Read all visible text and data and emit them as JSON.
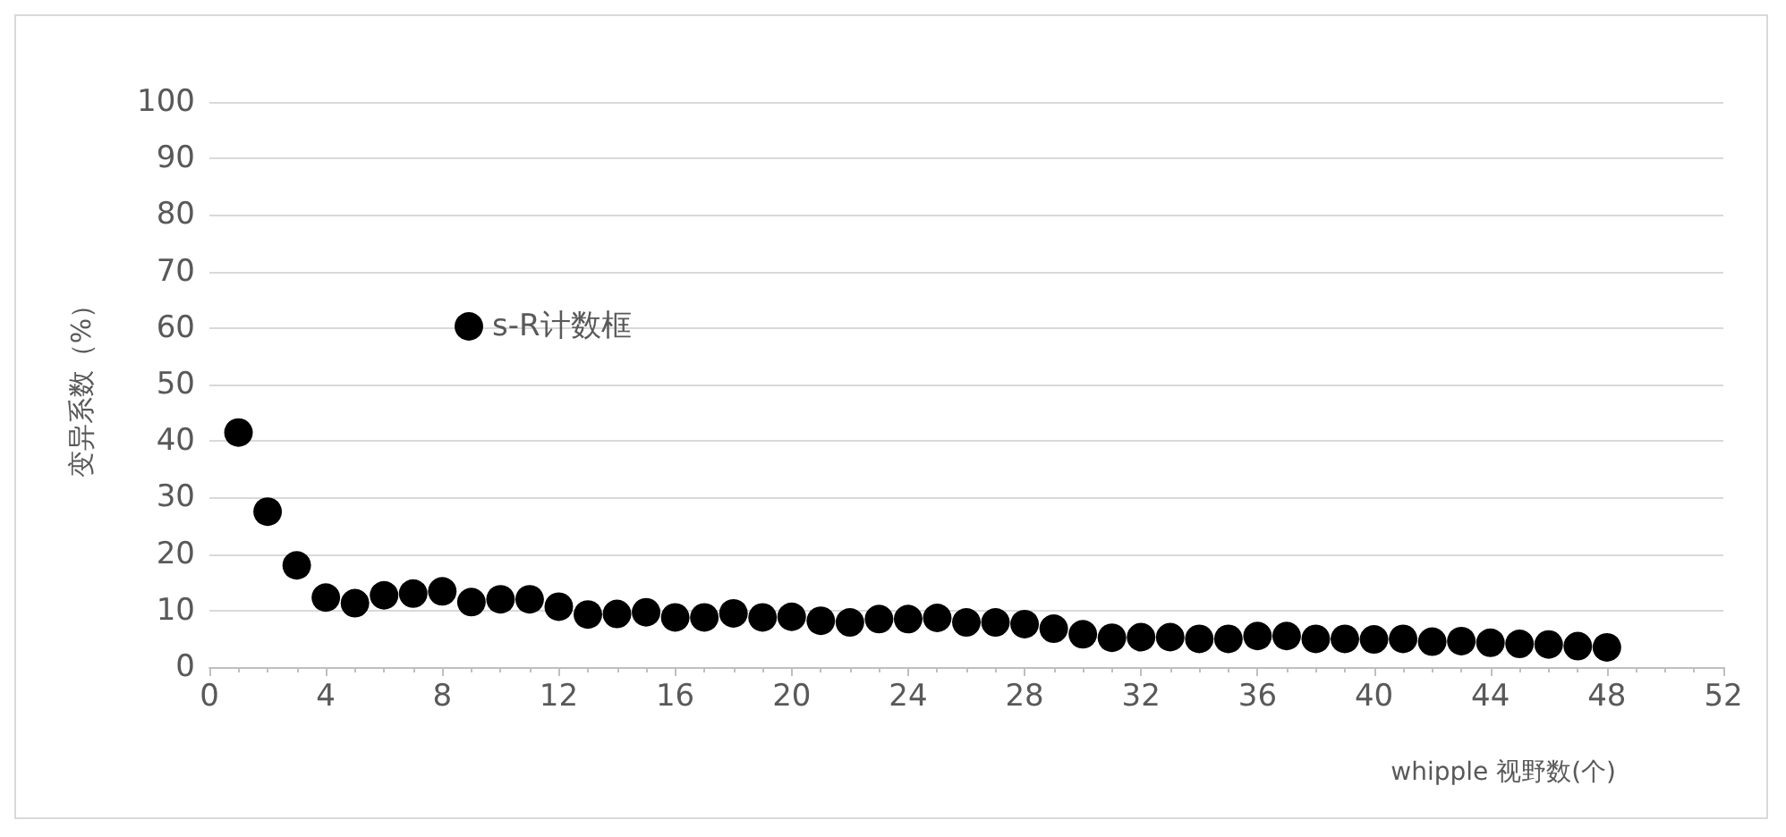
{
  "chart_data": {
    "type": "scatter",
    "xlabel": "whipple 视野数(个)",
    "ylabel": "变异系数（%）",
    "x": [
      1,
      2,
      3,
      4,
      5,
      6,
      7,
      8,
      9,
      10,
      11,
      12,
      13,
      14,
      15,
      16,
      17,
      18,
      19,
      20,
      21,
      22,
      23,
      24,
      25,
      26,
      27,
      28,
      29,
      30,
      31,
      32,
      33,
      34,
      35,
      36,
      37,
      38,
      39,
      40,
      41,
      42,
      43,
      44,
      45,
      46,
      47,
      48
    ],
    "series": [
      {
        "name": "s-R计数框",
        "color": "#000000",
        "values": [
          41.5,
          27.5,
          18,
          12.3,
          11.3,
          12.7,
          13,
          13.4,
          11.5,
          12,
          12,
          10.7,
          9.3,
          9.4,
          9.7,
          8.8,
          8.8,
          9.5,
          8.8,
          8.9,
          8.2,
          7.9,
          8.5,
          8.5,
          8.7,
          7.9,
          7.9,
          7.6,
          6.8,
          5.8,
          5.2,
          5.3,
          5.3,
          5,
          5,
          5.5,
          5.5,
          5,
          5,
          4.9,
          5,
          4.5,
          4.6,
          4.3,
          4.1,
          4,
          3.7,
          3.5
        ]
      }
    ],
    "xlim": [
      0,
      52
    ],
    "xticks": [
      0,
      4,
      8,
      12,
      16,
      20,
      24,
      28,
      32,
      36,
      40,
      44,
      48,
      52
    ],
    "ylim": [
      0,
      100
    ],
    "yticks": [
      0,
      10,
      20,
      30,
      40,
      50,
      60,
      70,
      80,
      90,
      100
    ],
    "grid": "y",
    "legend": "top left",
    "marker": "circle"
  }
}
